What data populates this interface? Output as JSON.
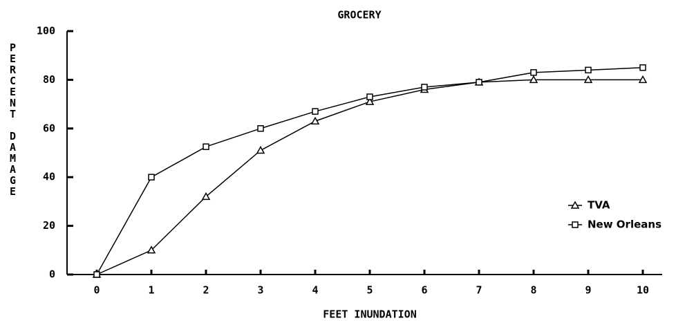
{
  "chart_data": {
    "type": "line",
    "title": "GROCERY",
    "xlabel": "FEET INUNDATION",
    "ylabel": "PERCENT DAMAGE",
    "x": [
      0,
      1,
      2,
      3,
      4,
      5,
      6,
      7,
      8,
      9,
      10
    ],
    "series": [
      {
        "name": "TVA",
        "color": "#000000",
        "marker": "triangle",
        "values": [
          0,
          10,
          32,
          51,
          63,
          71,
          76,
          79,
          80,
          80,
          80
        ]
      },
      {
        "name": "New Orleans",
        "color": "#000000",
        "marker": "square",
        "values": [
          0,
          40,
          52.5,
          60,
          67,
          73,
          77,
          79,
          83,
          84,
          85
        ]
      }
    ],
    "xlim": [
      0,
      10
    ],
    "xticks": [
      0,
      1,
      2,
      3,
      4,
      5,
      6,
      7,
      8,
      9,
      10
    ],
    "ylim": [
      0,
      100
    ],
    "yticks": [
      0,
      20,
      40,
      60,
      80,
      100
    ],
    "legend": "right"
  }
}
